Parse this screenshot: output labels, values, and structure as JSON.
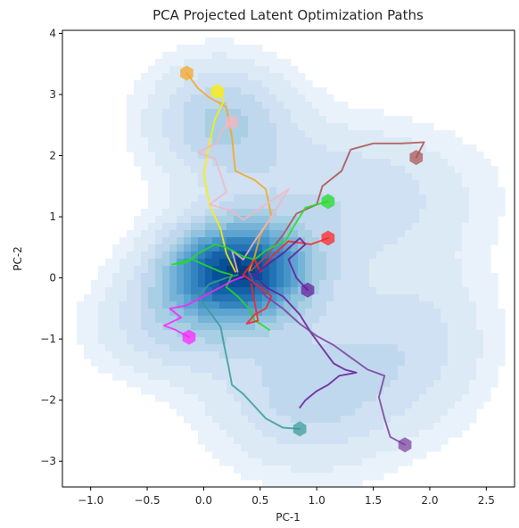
{
  "chart_data": {
    "type": "line",
    "title": "PCA Projected Latent Optimization Paths",
    "xlabel": "PC-1",
    "ylabel": "PC-2",
    "xlim": [
      -1.25,
      2.75
    ],
    "ylim": [
      -3.42,
      4.05
    ],
    "xticks": [
      "−1.0",
      "−0.5",
      "0.0",
      "0.5",
      "1.0",
      "1.5",
      "2.0",
      "2.5"
    ],
    "xtick_values": [
      -1.0,
      -0.5,
      0.0,
      0.5,
      1.0,
      1.5,
      2.0,
      2.5
    ],
    "yticks": [
      "−3",
      "−2",
      "−1",
      "0",
      "1",
      "2",
      "3",
      "4"
    ],
    "ytick_values": [
      -3,
      -2,
      -1,
      0,
      1,
      2,
      3,
      4
    ],
    "grid": false,
    "legend": "none",
    "background": "kde-density",
    "density_cmap": "Blues",
    "density_centers": [
      {
        "x": 0.3,
        "y": 0.12,
        "sx": 0.45,
        "sy": 0.55,
        "w": 1.0
      },
      {
        "x": 0.15,
        "y": 2.6,
        "sx": 0.45,
        "sy": 0.7,
        "w": 0.35
      },
      {
        "x": 1.3,
        "y": 1.4,
        "sx": 0.8,
        "sy": 0.8,
        "w": 0.25
      },
      {
        "x": 0.9,
        "y": -1.9,
        "sx": 0.6,
        "sy": 0.9,
        "w": 0.3
      },
      {
        "x": -0.3,
        "y": -0.8,
        "sx": 0.5,
        "sy": 0.6,
        "w": 0.25
      },
      {
        "x": 1.9,
        "y": -1.0,
        "sx": 0.5,
        "sy": 1.0,
        "w": 0.2
      }
    ],
    "series": [
      {
        "color": "#F5A623",
        "values": [
          [
            -0.15,
            3.35
          ],
          [
            -0.05,
            3.1
          ],
          [
            0.05,
            2.95
          ],
          [
            0.2,
            2.8
          ],
          [
            0.25,
            2.3
          ],
          [
            0.28,
            1.75
          ],
          [
            0.45,
            1.6
          ],
          [
            0.55,
            1.45
          ],
          [
            0.6,
            1.0
          ],
          [
            0.5,
            0.7
          ],
          [
            0.45,
            0.35
          ],
          [
            0.4,
            0.1
          ]
        ]
      },
      {
        "color": "#FFEE00",
        "values": [
          [
            0.12,
            3.05
          ],
          [
            0.18,
            2.9
          ],
          [
            0.1,
            2.6
          ],
          [
            0.05,
            2.2
          ],
          [
            0.0,
            1.7
          ],
          [
            0.05,
            1.2
          ],
          [
            0.15,
            0.8
          ],
          [
            0.2,
            0.4
          ],
          [
            0.28,
            0.1
          ]
        ]
      },
      {
        "color": "#F4B6C2",
        "values": [
          [
            0.25,
            2.55
          ],
          [
            0.15,
            2.4
          ],
          [
            0.12,
            2.2
          ],
          [
            0.05,
            2.15
          ],
          [
            -0.05,
            2.05
          ],
          [
            0.1,
            1.95
          ],
          [
            0.15,
            1.7
          ],
          [
            0.2,
            1.4
          ],
          [
            0.05,
            1.2
          ],
          [
            0.25,
            1.1
          ],
          [
            0.35,
            0.95
          ],
          [
            0.55,
            1.2
          ],
          [
            0.75,
            1.45
          ],
          [
            0.6,
            1.0
          ],
          [
            0.45,
            0.6
          ],
          [
            0.35,
            0.3
          ],
          [
            0.25,
            0.45
          ],
          [
            0.3,
            0.1
          ]
        ]
      },
      {
        "color": "#AA5050",
        "values": [
          [
            1.88,
            1.97
          ],
          [
            1.95,
            2.22
          ],
          [
            1.75,
            2.2
          ],
          [
            1.5,
            2.2
          ],
          [
            1.3,
            2.1
          ],
          [
            1.22,
            1.75
          ],
          [
            1.05,
            1.5
          ],
          [
            1.0,
            1.2
          ],
          [
            0.82,
            1.05
          ],
          [
            0.7,
            0.7
          ],
          [
            0.55,
            0.35
          ],
          [
            0.42,
            0.12
          ]
        ]
      },
      {
        "color": "#22DD22",
        "values": [
          [
            1.1,
            1.25
          ],
          [
            0.9,
            1.15
          ],
          [
            0.8,
            0.85
          ],
          [
            0.72,
            0.6
          ],
          [
            0.55,
            0.45
          ],
          [
            0.45,
            0.3
          ],
          [
            0.35,
            0.35
          ],
          [
            0.2,
            0.5
          ],
          [
            0.1,
            0.55
          ],
          [
            -0.05,
            0.4
          ],
          [
            -0.15,
            0.25
          ],
          [
            -0.28,
            0.22
          ],
          [
            -0.1,
            0.3
          ],
          [
            0.05,
            0.18
          ],
          [
            0.15,
            0.1
          ],
          [
            0.25,
            0.05
          ],
          [
            0.2,
            -0.15
          ],
          [
            0.3,
            -0.3
          ],
          [
            0.4,
            -0.5
          ],
          [
            0.45,
            -0.7
          ],
          [
            0.5,
            -0.75
          ],
          [
            0.58,
            -0.85
          ]
        ]
      },
      {
        "color": "#FF2222",
        "values": [
          [
            1.1,
            0.65
          ],
          [
            0.95,
            0.55
          ],
          [
            0.75,
            0.6
          ],
          [
            0.6,
            0.35
          ],
          [
            0.5,
            0.1
          ],
          [
            0.45,
            0.3
          ],
          [
            0.35,
            0.05
          ],
          [
            0.5,
            -0.15
          ],
          [
            0.6,
            -0.3
          ],
          [
            0.55,
            -0.5
          ],
          [
            0.45,
            -0.6
          ],
          [
            0.38,
            -0.75
          ],
          [
            0.48,
            -0.7
          ],
          [
            0.45,
            -0.4
          ],
          [
            0.42,
            -0.1
          ]
        ]
      },
      {
        "color": "#6A1B9A",
        "values": [
          [
            0.92,
            -0.2
          ],
          [
            0.82,
            0.0
          ],
          [
            0.75,
            0.3
          ],
          [
            0.9,
            0.55
          ],
          [
            0.85,
            0.65
          ],
          [
            0.7,
            0.4
          ],
          [
            0.55,
            0.2
          ],
          [
            0.45,
            0.05
          ],
          [
            0.55,
            -0.15
          ],
          [
            0.7,
            -0.3
          ],
          [
            0.85,
            -0.6
          ],
          [
            0.95,
            -0.9
          ],
          [
            1.05,
            -1.15
          ],
          [
            1.15,
            -1.4
          ],
          [
            1.25,
            -1.5
          ],
          [
            1.35,
            -1.55
          ],
          [
            1.2,
            -1.6
          ],
          [
            1.1,
            -1.75
          ],
          [
            1.0,
            -1.85
          ],
          [
            0.9,
            -2.0
          ],
          [
            0.85,
            -2.12
          ]
        ]
      },
      {
        "color": "#7B3F9E",
        "values": [
          [
            1.78,
            -2.73
          ],
          [
            1.65,
            -2.6
          ],
          [
            1.6,
            -2.3
          ],
          [
            1.55,
            -1.95
          ],
          [
            1.6,
            -1.6
          ],
          [
            1.45,
            -1.5
          ],
          [
            1.3,
            -1.3
          ],
          [
            1.15,
            -1.1
          ],
          [
            1.0,
            -0.95
          ],
          [
            0.85,
            -0.75
          ],
          [
            0.7,
            -0.5
          ],
          [
            0.55,
            -0.3
          ],
          [
            0.45,
            -0.1
          ],
          [
            0.4,
            0.1
          ]
        ]
      },
      {
        "color": "#3A9A9A",
        "values": [
          [
            0.85,
            -2.47
          ],
          [
            0.7,
            -2.45
          ],
          [
            0.55,
            -2.3
          ],
          [
            0.45,
            -2.1
          ],
          [
            0.35,
            -1.9
          ],
          [
            0.25,
            -1.75
          ],
          [
            0.22,
            -1.45
          ],
          [
            0.18,
            -1.1
          ],
          [
            0.15,
            -0.8
          ],
          [
            0.05,
            -0.55
          ],
          [
            -0.05,
            -0.3
          ],
          [
            0.05,
            -0.1
          ],
          [
            0.2,
            0.0
          ],
          [
            0.3,
            0.05
          ]
        ]
      },
      {
        "color": "#FF22FF",
        "values": [
          [
            -0.13,
            -0.97
          ],
          [
            -0.25,
            -0.85
          ],
          [
            -0.35,
            -0.78
          ],
          [
            -0.2,
            -0.65
          ],
          [
            -0.3,
            -0.5
          ],
          [
            -0.15,
            -0.45
          ],
          [
            -0.05,
            -0.35
          ],
          [
            0.05,
            -0.25
          ],
          [
            0.15,
            -0.15
          ],
          [
            0.25,
            -0.05
          ],
          [
            0.35,
            0.02
          ]
        ]
      }
    ]
  }
}
